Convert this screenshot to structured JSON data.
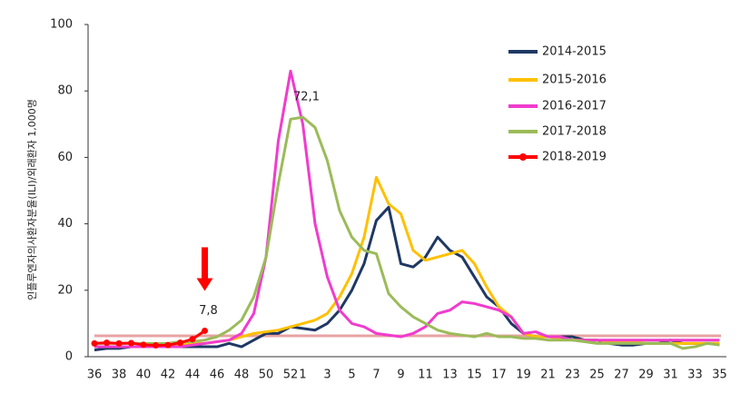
{
  "chart_data": {
    "type": "line",
    "y_label": "인플루엔자의사환자분율(ILI)/외래환자 1,000명",
    "categories": [
      "36",
      null,
      "38",
      null,
      "40",
      null,
      "42",
      null,
      "44",
      null,
      "46",
      null,
      "48",
      null,
      "50",
      null,
      "52",
      "1",
      null,
      "3",
      null,
      "5",
      null,
      "7",
      null,
      "9",
      null,
      "11",
      null,
      "13",
      null,
      "15",
      null,
      "17",
      null,
      "19",
      null,
      "21",
      null,
      "23",
      null,
      "25",
      null,
      "27",
      null,
      "29",
      null,
      "31",
      null,
      "33",
      null,
      "35"
    ],
    "ylim": [
      0,
      100
    ],
    "yticks": [
      0,
      20,
      40,
      60,
      80,
      100
    ],
    "threshold": 6.3,
    "threshold_color": "#e8a2a2",
    "legend": "upper right",
    "series": [
      {
        "name": "2014-2015",
        "color": "#1f3864",
        "values": [
          2,
          2.5,
          2.5,
          3,
          3,
          3,
          3,
          3,
          3,
          3,
          3,
          4,
          3,
          5,
          7,
          7,
          9,
          8.5,
          8,
          10,
          14,
          20,
          28,
          41,
          45,
          28,
          27,
          30,
          36,
          32,
          30,
          24,
          18,
          15,
          10,
          7,
          6,
          6,
          6,
          6,
          5,
          5,
          4,
          3.5,
          3.5,
          4,
          4,
          5,
          4,
          4,
          4,
          4
        ]
      },
      {
        "name": "2015-2016",
        "color": "#ffc000",
        "values": [
          3,
          3,
          3,
          3,
          3,
          3,
          3.5,
          3.5,
          4,
          4,
          4.5,
          5,
          6,
          7,
          7.5,
          8,
          9,
          10,
          11,
          13,
          18,
          25,
          36,
          54,
          46,
          43,
          32,
          29,
          30,
          31,
          32,
          28,
          21,
          15,
          12,
          7,
          6,
          6,
          5.5,
          5,
          5,
          5,
          4.5,
          4.5,
          4.5,
          4,
          4,
          4,
          4,
          4,
          4,
          4
        ]
      },
      {
        "name": "2016-2017",
        "color": "#f03ccd",
        "values": [
          3,
          3,
          3,
          3,
          3,
          3,
          3,
          3,
          3.5,
          4,
          4.5,
          5,
          7,
          13,
          30,
          65,
          86,
          70,
          40,
          24,
          14,
          10,
          9,
          7,
          6.5,
          6,
          7,
          9,
          13,
          14,
          16.5,
          16,
          15,
          14,
          12,
          7,
          7.5,
          6,
          6,
          5,
          5,
          5,
          5,
          5,
          5,
          5,
          5,
          5,
          5,
          5,
          5,
          5
        ]
      },
      {
        "name": "2017-2018",
        "color": "#9bbb59",
        "values": [
          4,
          4,
          4,
          4,
          4,
          4,
          4,
          4.5,
          4.5,
          5,
          6,
          8,
          11,
          18,
          30,
          52,
          71.5,
          72.1,
          69,
          59,
          44,
          36,
          32,
          31,
          19,
          15,
          12,
          10,
          8,
          7,
          6.5,
          6,
          7,
          6,
          6,
          5.5,
          5.5,
          5,
          5,
          5,
          4.5,
          4,
          4,
          4,
          4,
          4,
          4,
          4,
          2.5,
          3,
          4,
          3.5
        ],
        "value_labels": [
          null,
          null,
          null,
          null,
          null,
          null,
          null,
          null,
          null,
          null,
          null,
          null,
          null,
          null,
          null,
          null,
          null,
          "72,1",
          null,
          null,
          null,
          null,
          null,
          null,
          null,
          null,
          null,
          null,
          null,
          null,
          null,
          null,
          null,
          null,
          null,
          null,
          null,
          null,
          null,
          null,
          null,
          null,
          null,
          null,
          null,
          null,
          null,
          null,
          null,
          null,
          null,
          null
        ]
      },
      {
        "name": "2018-2019",
        "color": "#ff0000",
        "markers": true,
        "values": [
          4,
          4.2,
          4,
          4.1,
          3.6,
          3.4,
          3.5,
          4.2,
          5.3,
          7.8,
          null,
          null,
          null,
          null,
          null,
          null,
          null,
          null,
          null,
          null,
          null,
          null,
          null,
          null,
          null,
          null,
          null,
          null,
          null,
          null,
          null,
          null,
          null,
          null,
          null,
          null,
          null,
          null,
          null,
          null,
          null,
          null,
          null,
          null,
          null,
          null,
          null,
          null,
          null,
          null,
          null,
          null
        ],
        "value_labels": [
          null,
          null,
          null,
          null,
          null,
          null,
          null,
          null,
          null,
          "7,8",
          null,
          null,
          null,
          null,
          null,
          null,
          null,
          null,
          null,
          null,
          null,
          null,
          null,
          null,
          null,
          null,
          null,
          null,
          null,
          null,
          null,
          null,
          null,
          null,
          null,
          null,
          null,
          null,
          null,
          null,
          null,
          null,
          null,
          null,
          null,
          null,
          null,
          null,
          null,
          null,
          null,
          null
        ]
      }
    ]
  }
}
